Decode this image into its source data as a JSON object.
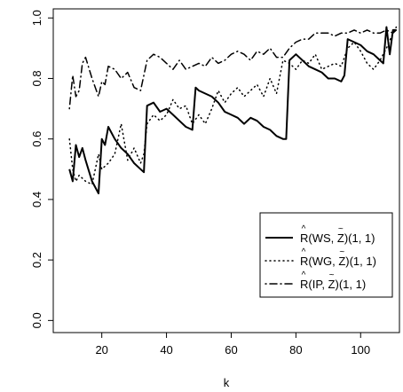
{
  "chart_data": {
    "type": "line",
    "xlabel": "k",
    "ylabel": "",
    "xlim": [
      5,
      112
    ],
    "ylim": [
      -0.04,
      1.03
    ],
    "x_ticks": [
      20,
      40,
      60,
      80,
      100
    ],
    "x_tick_labels": [
      "20",
      "40",
      "60",
      "80",
      "100"
    ],
    "y_ticks": [
      0.0,
      0.2,
      0.4,
      0.6,
      0.8,
      1.0
    ],
    "y_tick_labels": [
      "0.0",
      "0.2",
      "0.4",
      "0.6",
      "0.8",
      "1.0"
    ],
    "grid": false,
    "legend_position": "bottom-right",
    "series": [
      {
        "name": "R(WS, Z)(1, 1)",
        "legend_hat": "^",
        "legend_tilde": "~",
        "line_style": "solid",
        "color": "#000000",
        "x": [
          10,
          11,
          12,
          13,
          14,
          15,
          17,
          19,
          20,
          21,
          22,
          24,
          26,
          28,
          30,
          32,
          33,
          34,
          36,
          38,
          40,
          42,
          44,
          46,
          48,
          49,
          50,
          52,
          54,
          56,
          58,
          60,
          62,
          64,
          66,
          68,
          70,
          72,
          74,
          76,
          77,
          78,
          80,
          82,
          84,
          86,
          88,
          90,
          92,
          94,
          95,
          96,
          98,
          100,
          102,
          104,
          106,
          107,
          108,
          109,
          110,
          111
        ],
        "y": [
          0.5,
          0.46,
          0.58,
          0.54,
          0.57,
          0.53,
          0.46,
          0.42,
          0.6,
          0.58,
          0.64,
          0.6,
          0.57,
          0.55,
          0.52,
          0.5,
          0.49,
          0.71,
          0.72,
          0.69,
          0.7,
          0.68,
          0.66,
          0.64,
          0.63,
          0.77,
          0.76,
          0.75,
          0.74,
          0.72,
          0.69,
          0.68,
          0.67,
          0.65,
          0.67,
          0.66,
          0.64,
          0.63,
          0.61,
          0.6,
          0.6,
          0.86,
          0.88,
          0.86,
          0.84,
          0.83,
          0.82,
          0.8,
          0.8,
          0.79,
          0.81,
          0.93,
          0.92,
          0.91,
          0.89,
          0.88,
          0.86,
          0.85,
          0.97,
          0.88,
          0.96,
          0.96
        ]
      },
      {
        "name": "R(WG, Z)(1, 1)",
        "legend_hat": "^",
        "legend_tilde": "~",
        "line_style": "dotted",
        "color": "#000000",
        "x": [
          10,
          11,
          12,
          13,
          14,
          15,
          17,
          19,
          20,
          21,
          22,
          24,
          26,
          28,
          30,
          32,
          33,
          34,
          36,
          38,
          40,
          42,
          44,
          46,
          48,
          50,
          52,
          54,
          56,
          58,
          60,
          62,
          64,
          66,
          68,
          70,
          72,
          74,
          76,
          78,
          80,
          82,
          84,
          86,
          88,
          90,
          92,
          94,
          96,
          98,
          100,
          102,
          104,
          106,
          108,
          110,
          111
        ],
        "y": [
          0.6,
          0.5,
          0.46,
          0.48,
          0.47,
          0.46,
          0.45,
          0.55,
          0.5,
          0.51,
          0.52,
          0.55,
          0.65,
          0.53,
          0.57,
          0.52,
          0.55,
          0.65,
          0.68,
          0.66,
          0.68,
          0.73,
          0.7,
          0.71,
          0.65,
          0.68,
          0.65,
          0.7,
          0.76,
          0.72,
          0.75,
          0.77,
          0.74,
          0.76,
          0.78,
          0.74,
          0.8,
          0.75,
          0.86,
          0.85,
          0.83,
          0.86,
          0.85,
          0.88,
          0.83,
          0.84,
          0.85,
          0.84,
          0.9,
          0.92,
          0.89,
          0.85,
          0.83,
          0.86,
          0.9,
          0.95,
          0.97
        ]
      },
      {
        "name": "R(IP, Z)(1, 1)",
        "legend_hat": "^",
        "legend_tilde": "~",
        "line_style": "dashdot",
        "color": "#000000",
        "x": [
          10,
          11,
          12,
          13,
          14,
          15,
          17,
          19,
          20,
          21,
          22,
          24,
          26,
          28,
          30,
          32,
          34,
          36,
          38,
          40,
          42,
          44,
          46,
          48,
          50,
          52,
          54,
          56,
          58,
          60,
          62,
          64,
          66,
          68,
          70,
          72,
          74,
          76,
          78,
          80,
          82,
          84,
          86,
          88,
          90,
          92,
          94,
          96,
          98,
          100,
          102,
          104,
          106,
          108,
          110,
          111
        ],
        "y": [
          0.7,
          0.81,
          0.74,
          0.76,
          0.85,
          0.87,
          0.8,
          0.74,
          0.79,
          0.78,
          0.84,
          0.83,
          0.8,
          0.82,
          0.77,
          0.76,
          0.86,
          0.88,
          0.87,
          0.85,
          0.83,
          0.86,
          0.83,
          0.84,
          0.85,
          0.84,
          0.87,
          0.85,
          0.86,
          0.88,
          0.89,
          0.88,
          0.86,
          0.89,
          0.88,
          0.9,
          0.87,
          0.87,
          0.9,
          0.92,
          0.93,
          0.93,
          0.95,
          0.95,
          0.95,
          0.94,
          0.95,
          0.95,
          0.96,
          0.95,
          0.96,
          0.95,
          0.95,
          0.96,
          0.95,
          0.96
        ]
      }
    ]
  }
}
